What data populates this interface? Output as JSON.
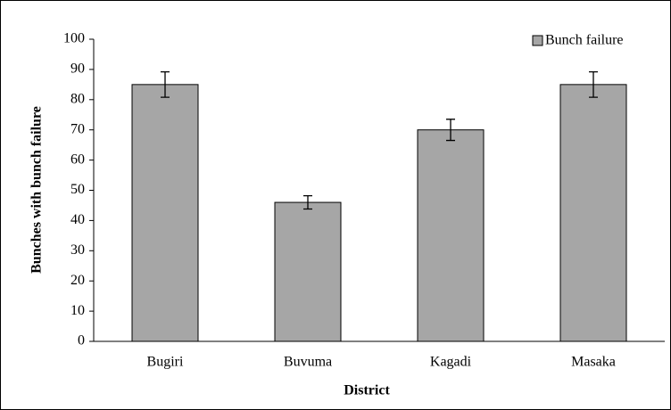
{
  "chart_data": {
    "type": "bar",
    "categories": [
      "Bugiri",
      "Buvuma",
      "Kagadi",
      "Masaka"
    ],
    "series": [
      {
        "name": "Bunch failure",
        "color": "#a6a6a6",
        "values": [
          85,
          46,
          70,
          85
        ],
        "errors": [
          4.2,
          2.2,
          3.5,
          4.2
        ]
      }
    ],
    "xlabel": "District",
    "ylabel": "Bunches with bunch failure",
    "ylim": [
      0,
      100
    ],
    "yticks": [
      0,
      10,
      20,
      30,
      40,
      50,
      60,
      70,
      80,
      90,
      100
    ],
    "legend": "top-right"
  }
}
